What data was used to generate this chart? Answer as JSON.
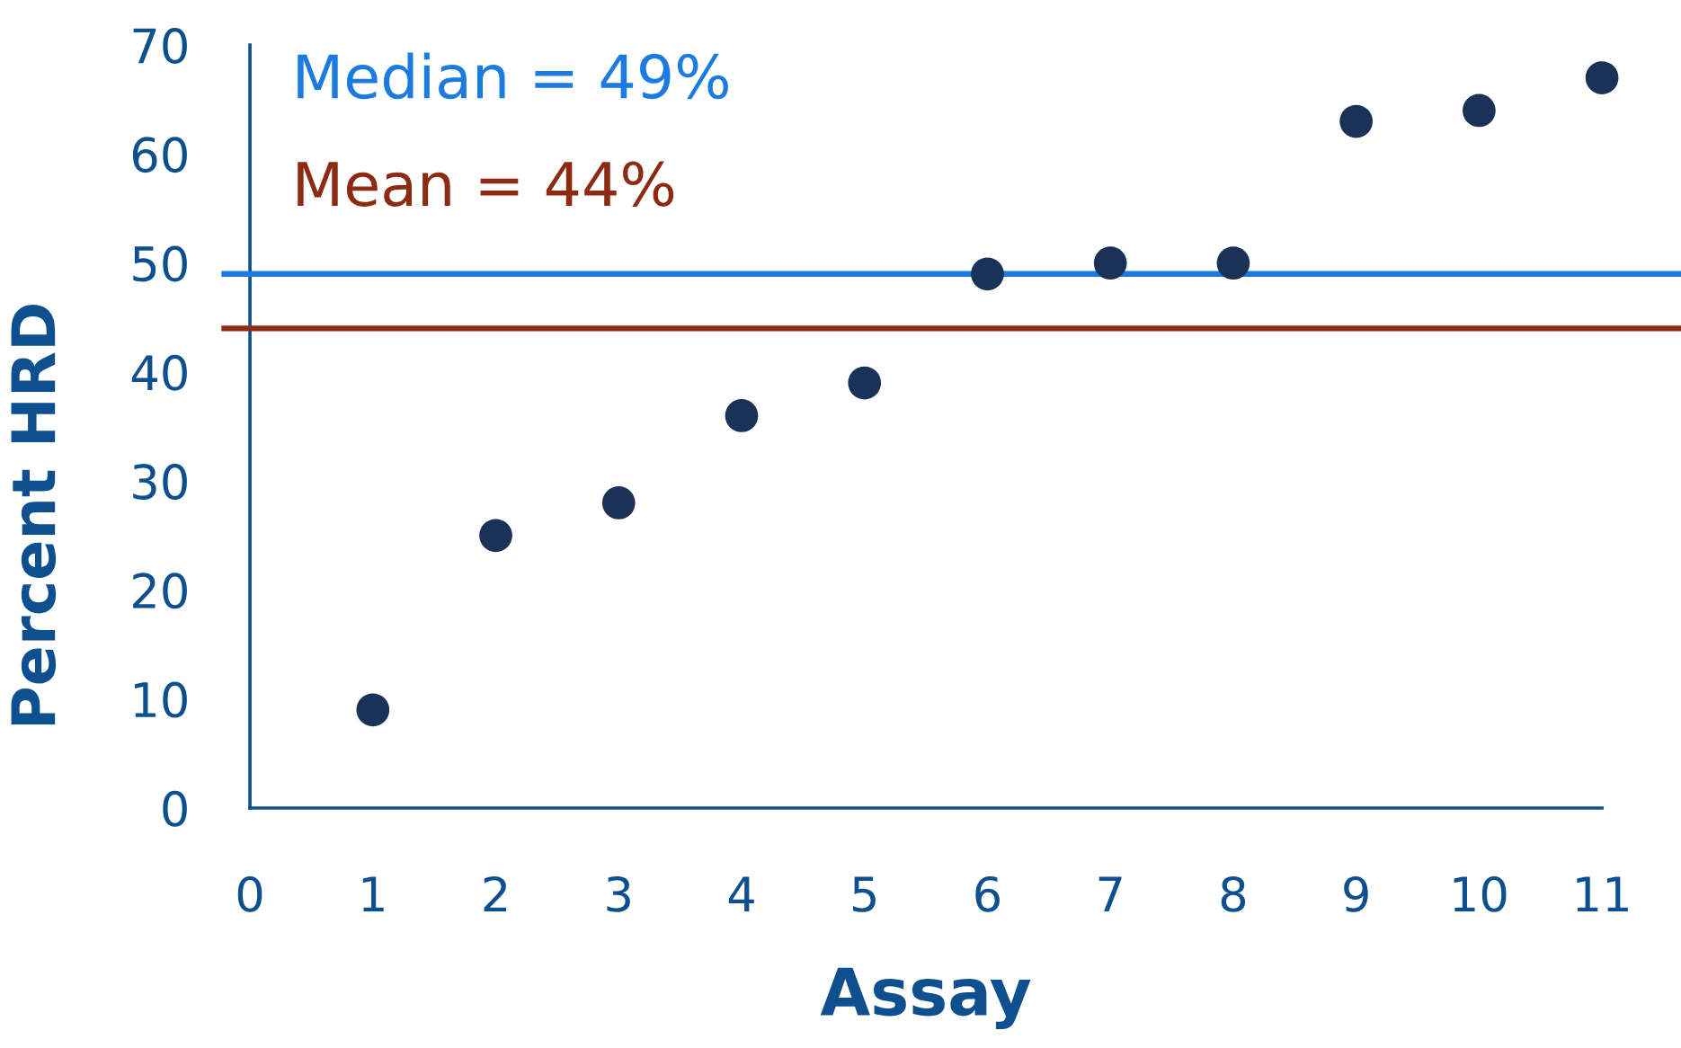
{
  "chart_data": {
    "type": "scatter",
    "xlabel": "Assay",
    "ylabel": "Percent HRD",
    "x": [
      1,
      2,
      3,
      4,
      5,
      6,
      7,
      8,
      9,
      10,
      11
    ],
    "values": [
      9,
      25,
      28,
      36,
      39,
      49,
      50,
      50,
      63,
      64,
      67
    ],
    "color": "#1a3158",
    "marker": "circle",
    "xlim": [
      0,
      11
    ],
    "xticks": [
      0,
      1,
      2,
      3,
      4,
      5,
      6,
      7,
      8,
      9,
      10,
      11
    ],
    "ylim": [
      0,
      70
    ],
    "yticks": [
      0,
      10,
      20,
      30,
      40,
      50,
      60,
      70
    ],
    "ref_lines": [
      {
        "axis": "y",
        "value": 49,
        "label": "Median = 49%",
        "color": "#1c7be0"
      },
      {
        "axis": "y",
        "value": 44,
        "label": "Mean = 44%",
        "color": "#8c2a12"
      }
    ]
  }
}
